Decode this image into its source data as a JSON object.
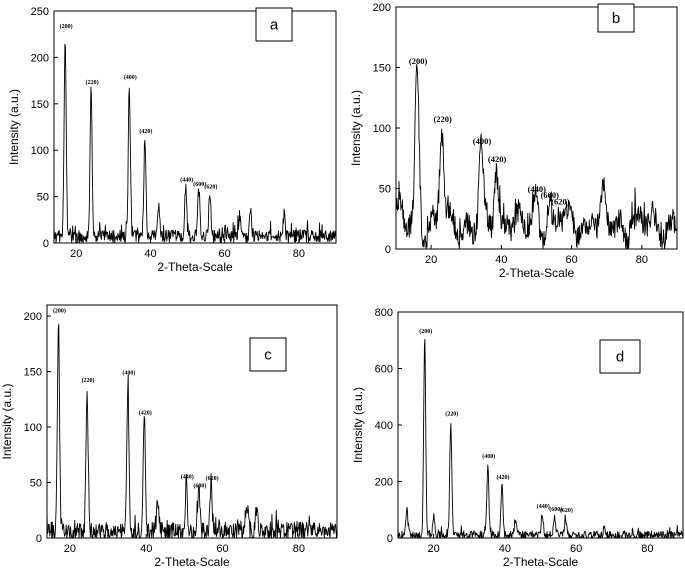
{
  "chart_data": [
    {
      "panel": "a",
      "type": "line",
      "xlabel": "2-Theta-Scale",
      "ylabel": "Intensity (a.u.)",
      "xlim": [
        14,
        90
      ],
      "ylim": [
        0,
        250
      ],
      "xticks": [
        20,
        40,
        60,
        80
      ],
      "yticks": [
        0,
        50,
        100,
        150,
        200,
        250
      ],
      "baseline": 7,
      "noise": 10,
      "peaks": [
        {
          "x": 17.0,
          "y": 225,
          "label": "(200)"
        },
        {
          "x": 24.0,
          "y": 165,
          "label": "(220)"
        },
        {
          "x": 34.3,
          "y": 170,
          "label": "(400)"
        },
        {
          "x": 38.5,
          "y": 112,
          "label": "(420)"
        },
        {
          "x": 42.2,
          "y": 38,
          "label": ""
        },
        {
          "x": 49.5,
          "y": 60,
          "label": "(440)"
        },
        {
          "x": 53.0,
          "y": 55,
          "label": "(600)"
        },
        {
          "x": 56.0,
          "y": 52,
          "label": "(620)"
        },
        {
          "x": 64.0,
          "y": 30,
          "label": ""
        },
        {
          "x": 67.0,
          "y": 33,
          "label": ""
        },
        {
          "x": 76.0,
          "y": 30,
          "label": ""
        }
      ]
    },
    {
      "panel": "b",
      "type": "line",
      "xlabel": "2-Theta-Scale",
      "ylabel": "Intensity (a.u.)",
      "xlim": [
        10,
        90
      ],
      "ylim": [
        0,
        200
      ],
      "xticks": [
        20,
        40,
        60,
        80
      ],
      "yticks": [
        0,
        50,
        100,
        150,
        200
      ],
      "baseline": 20,
      "noise": 14,
      "peaks": [
        {
          "x": 16.0,
          "y": 148,
          "label": "(200)"
        },
        {
          "x": 23.0,
          "y": 100,
          "label": "(220)"
        },
        {
          "x": 34.2,
          "y": 82,
          "label": "(400)"
        },
        {
          "x": 38.5,
          "y": 67,
          "label": "(420)"
        },
        {
          "x": 42.0,
          "y": 34,
          "label": ""
        },
        {
          "x": 49.8,
          "y": 42,
          "label": "(440)"
        },
        {
          "x": 53.5,
          "y": 37,
          "label": "(600)"
        },
        {
          "x": 56.5,
          "y": 32,
          "label": "(620)"
        },
        {
          "x": 66.0,
          "y": 30,
          "label": ""
        },
        {
          "x": 69.0,
          "y": 40,
          "label": ""
        },
        {
          "x": 77.0,
          "y": 25,
          "label": ""
        }
      ]
    },
    {
      "panel": "c",
      "type": "line",
      "xlabel": "2-Theta-Scale",
      "ylabel": "Intensity (a.u.)",
      "xlim": [
        14,
        90
      ],
      "ylim": [
        0,
        210
      ],
      "xticks": [
        20,
        40,
        60,
        80
      ],
      "yticks": [
        0,
        50,
        100,
        150,
        200
      ],
      "baseline": 6,
      "noise": 12,
      "peaks": [
        {
          "x": 17.0,
          "y": 198,
          "label": "(200)"
        },
        {
          "x": 24.5,
          "y": 135,
          "label": "(220)"
        },
        {
          "x": 35.2,
          "y": 142,
          "label": "(400)"
        },
        {
          "x": 39.5,
          "y": 106,
          "label": "(420)"
        },
        {
          "x": 43.0,
          "y": 30,
          "label": ""
        },
        {
          "x": 50.5,
          "y": 48,
          "label": "(440)"
        },
        {
          "x": 53.8,
          "y": 40,
          "label": "(600)"
        },
        {
          "x": 57.0,
          "y": 47,
          "label": "(620)"
        },
        {
          "x": 66.5,
          "y": 28,
          "label": ""
        },
        {
          "x": 69.0,
          "y": 27,
          "label": ""
        }
      ]
    },
    {
      "panel": "d",
      "type": "line",
      "xlabel": "2-Theta-Scale",
      "ylabel": "Intensity (a.u.)",
      "xlim": [
        10,
        90
      ],
      "ylim": [
        0,
        800
      ],
      "xticks": [
        20,
        40,
        60,
        80
      ],
      "yticks": [
        0,
        200,
        400,
        600,
        800
      ],
      "baseline": 10,
      "noise": 22,
      "peaks": [
        {
          "x": 12.5,
          "y": 95,
          "label": ""
        },
        {
          "x": 17.5,
          "y": 705,
          "label": "(200)"
        },
        {
          "x": 20.0,
          "y": 75,
          "label": ""
        },
        {
          "x": 24.8,
          "y": 412,
          "label": "(220)"
        },
        {
          "x": 35.2,
          "y": 262,
          "label": "(400)"
        },
        {
          "x": 39.2,
          "y": 188,
          "label": "(420)"
        },
        {
          "x": 43.0,
          "y": 72,
          "label": ""
        },
        {
          "x": 50.5,
          "y": 85,
          "label": "(440)"
        },
        {
          "x": 54.0,
          "y": 75,
          "label": "(600)"
        },
        {
          "x": 57.0,
          "y": 70,
          "label": "(620)"
        },
        {
          "x": 68.0,
          "y": 40,
          "label": ""
        }
      ]
    }
  ]
}
